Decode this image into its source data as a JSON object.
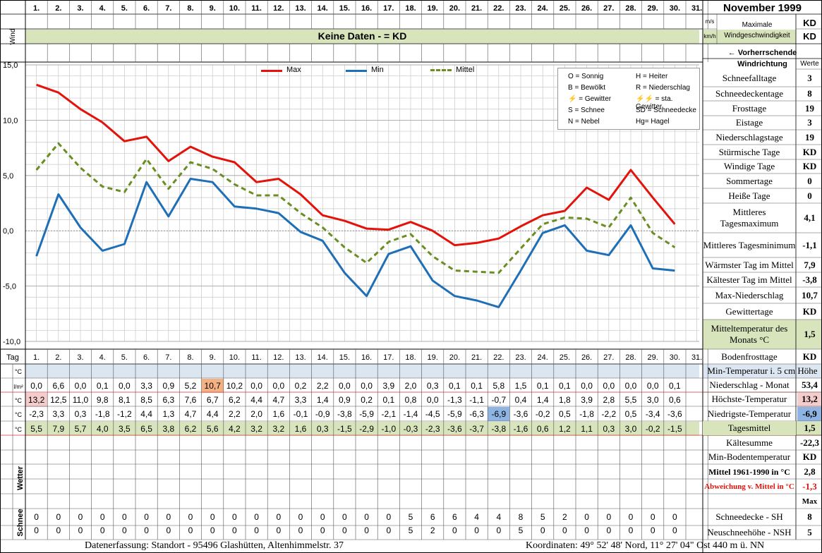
{
  "header": {
    "title": "November 1999",
    "wind_label": "Wind",
    "unit_ms": "m/s",
    "unit_kmh": "km/h",
    "max_wind_label": "Maximale Windgeschwindigkeit",
    "max_wind_ms": "KD",
    "max_wind_kmh": "KD",
    "no_data_text": "Keine Daten -  = KD",
    "wind_direction_label": "← Vorherrschende Windrichtung",
    "werte_label": "Werte",
    "days": [
      "1.",
      "2.",
      "3.",
      "4.",
      "5.",
      "6.",
      "7.",
      "8.",
      "9.",
      "10.",
      "11.",
      "12.",
      "13.",
      "14.",
      "15.",
      "16.",
      "17.",
      "18.",
      "19.",
      "20.",
      "21.",
      "22.",
      "23.",
      "24.",
      "25.",
      "26.",
      "27.",
      "28.",
      "29.",
      "30.",
      "31."
    ]
  },
  "chart_data": {
    "type": "line",
    "x": [
      1,
      2,
      3,
      4,
      5,
      6,
      7,
      8,
      9,
      10,
      11,
      12,
      13,
      14,
      15,
      16,
      17,
      18,
      19,
      20,
      21,
      22,
      23,
      24,
      25,
      26,
      27,
      28,
      29,
      30
    ],
    "series": [
      {
        "name": "Max",
        "color": "#e3120b",
        "values": [
          13.2,
          12.5,
          11.0,
          9.8,
          8.1,
          8.5,
          6.3,
          7.6,
          6.7,
          6.2,
          4.4,
          4.7,
          3.3,
          1.4,
          0.9,
          0.2,
          0.1,
          0.8,
          0.0,
          -1.3,
          -1.1,
          -0.7,
          0.4,
          1.4,
          1.8,
          3.9,
          2.8,
          5.5,
          3.0,
          0.6
        ]
      },
      {
        "name": "Min",
        "color": "#1f6fb6",
        "values": [
          -2.3,
          3.3,
          0.3,
          -1.8,
          -1.2,
          4.4,
          1.3,
          4.7,
          4.4,
          2.2,
          2.0,
          1.6,
          -0.1,
          -0.9,
          -3.8,
          -5.9,
          -2.1,
          -1.4,
          -4.5,
          -5.9,
          -6.3,
          -6.9,
          -3.6,
          -0.2,
          0.5,
          -1.8,
          -2.2,
          0.5,
          -3.4,
          -3.6
        ]
      },
      {
        "name": "Mittel",
        "color": "#6b8e23",
        "values": [
          5.5,
          7.9,
          5.7,
          4.0,
          3.5,
          6.5,
          3.8,
          6.2,
          5.6,
          4.2,
          3.2,
          3.2,
          1.6,
          0.3,
          -1.5,
          -2.9,
          -1.0,
          -0.3,
          -2.3,
          -3.6,
          -3.7,
          -3.8,
          -1.6,
          0.6,
          1.2,
          1.1,
          0.3,
          3.0,
          -0.2,
          -1.5
        ]
      }
    ],
    "ylim": [
      -10,
      15
    ],
    "yticks": [
      "15,0",
      "10,0",
      "5,0",
      "0,0",
      "-5,0",
      "-10,0"
    ],
    "grid": true,
    "legend": "top-center"
  },
  "symbols_legend": [
    [
      "O = Sonnig",
      "H = Heiter"
    ],
    [
      "B = Bewölkt",
      "R = Niederschlag"
    ],
    [
      "⚡ = Gewitter",
      "⚡⚡ = sta. Gewitter"
    ],
    [
      "S = Schnee",
      "SD = Schneedecke"
    ],
    [
      "N = Nebel",
      "Hg= Hagel"
    ]
  ],
  "table": {
    "tag_label": "Tag",
    "unit_c": "°C",
    "unit_lm2": "l/m²",
    "wetter_label": "Wetter",
    "schnee_label": "Schnee",
    "niederschlag": [
      "0,0",
      "6,6",
      "0,0",
      "0,1",
      "0,0",
      "3,3",
      "0,9",
      "5,2",
      "10,7",
      "10,2",
      "0,0",
      "0,0",
      "0,2",
      "2,2",
      "0,0",
      "0,0",
      "3,9",
      "2,0",
      "0,3",
      "0,1",
      "0,1",
      "5,8",
      "1,5",
      "0,1",
      "0,1",
      "0,0",
      "0,0",
      "0,0",
      "0,0",
      "0,1"
    ],
    "hoechst": [
      "13,2",
      "12,5",
      "11,0",
      "9,8",
      "8,1",
      "8,5",
      "6,3",
      "7,6",
      "6,7",
      "6,2",
      "4,4",
      "4,7",
      "3,3",
      "1,4",
      "0,9",
      "0,2",
      "0,1",
      "0,8",
      "0,0",
      "-1,3",
      "-1,1",
      "-0,7",
      "0,4",
      "1,4",
      "1,8",
      "3,9",
      "2,8",
      "5,5",
      "3,0",
      "0,6"
    ],
    "niedrigst": [
      "-2,3",
      "3,3",
      "0,3",
      "-1,8",
      "-1,2",
      "4,4",
      "1,3",
      "4,7",
      "4,4",
      "2,2",
      "2,0",
      "1,6",
      "-0,1",
      "-0,9",
      "-3,8",
      "-5,9",
      "-2,1",
      "-1,4",
      "-4,5",
      "-5,9",
      "-6,3",
      "-6,9",
      "-3,6",
      "-0,2",
      "0,5",
      "-1,8",
      "-2,2",
      "0,5",
      "-3,4",
      "-3,6"
    ],
    "mittel": [
      "5,5",
      "7,9",
      "5,7",
      "4,0",
      "3,5",
      "6,5",
      "3,8",
      "6,2",
      "5,6",
      "4,2",
      "3,2",
      "3,2",
      "1,6",
      "0,3",
      "-1,5",
      "-2,9",
      "-1,0",
      "-0,3",
      "-2,3",
      "-3,6",
      "-3,7",
      "-3,8",
      "-1,6",
      "0,6",
      "1,2",
      "1,1",
      "0,3",
      "3,0",
      "-0,2",
      "-1,5"
    ],
    "schneedecke": [
      "0",
      "0",
      "0",
      "0",
      "0",
      "0",
      "0",
      "0",
      "0",
      "0",
      "0",
      "0",
      "0",
      "0",
      "0",
      "0",
      "0",
      "5",
      "6",
      "6",
      "4",
      "4",
      "8",
      "5",
      "2",
      "0",
      "0",
      "0",
      "0",
      "0"
    ],
    "neuschnee": [
      "0",
      "0",
      "0",
      "0",
      "0",
      "0",
      "0",
      "0",
      "0",
      "0",
      "0",
      "0",
      "0",
      "0",
      "0",
      "0",
      "0",
      "5",
      "2",
      "0",
      "0",
      "0",
      "5",
      "0",
      "0",
      "0",
      "0",
      "0",
      "0",
      "0"
    ]
  },
  "stats": [
    {
      "label": "Schneefalltage",
      "value": "3"
    },
    {
      "label": "Schneedeckentage",
      "value": "8"
    },
    {
      "label": "Frosttage",
      "value": "19"
    },
    {
      "label": "Eistage",
      "value": "3"
    },
    {
      "label": "Niederschlagstage",
      "value": "19"
    },
    {
      "label": "Stürmische Tage",
      "value": "KD"
    },
    {
      "label": "Windige Tage",
      "value": "KD"
    },
    {
      "label": "Sommertage",
      "value": "0"
    },
    {
      "label": "Heiße Tage",
      "value": "0"
    },
    {
      "label": "Mittleres Tagesmaximum",
      "value": "4,1"
    },
    {
      "label": "Mittleres Tagesminimum",
      "value": "-1,1"
    },
    {
      "label": "Wärmster Tag im Mittel",
      "value": "7,9"
    },
    {
      "label": "Kältester Tag im Mittel",
      "value": "-3,8"
    },
    {
      "label": "Max-Niederschlag",
      "value": "10,7"
    },
    {
      "label": "Gewittertage",
      "value": "KD"
    },
    {
      "label": "Mitteltemperatur des Monats °C",
      "value": "1,5"
    }
  ],
  "right_table": {
    "bodenfrost_label": "Bodenfrosttage",
    "bodenfrost_value": "KD",
    "min_temp_5cm_label": "Min-Temperatur i. 5 cm Höhe",
    "niederschlag_monat_label": "Niederschlag - Monat",
    "niederschlag_monat_value": "53,4",
    "hoechste_label": "Höchste-Temperatur",
    "hoechste_value": "13,2",
    "niedrigste_label": "Niedrigste-Temperatur",
    "niedrigste_value": "-6,9",
    "tagesmittel_label": "Tagesmittel",
    "tagesmittel_value": "1,5",
    "kaeltesumme_label": "Kältesumme",
    "kaeltesumme_value": "-22,3",
    "min_boden_label": "Min-Bodentemperatur",
    "min_boden_value": "KD",
    "mittel_1961_label": "Mittel 1961-1990 in °C",
    "mittel_1961_value": "2,8",
    "abweichung_label": "Abweichung v. Mittel in °C",
    "abweichung_value": "-1,3",
    "max_label": "Max",
    "schneedecke_label": "Schneedecke -  SH",
    "schneedecke_value": "8",
    "neuschnee_label": "Neuschneehöhe - NSH",
    "neuschnee_value": "5"
  },
  "footer": {
    "left": "Datenerfassung:  Standort -  95496  Glashütten, Altenhimmelstr. 37",
    "right": "Koordinaten:  49° 52' 48' Nord,  11° 27' 04\" Ost   440 m ü. NN"
  }
}
